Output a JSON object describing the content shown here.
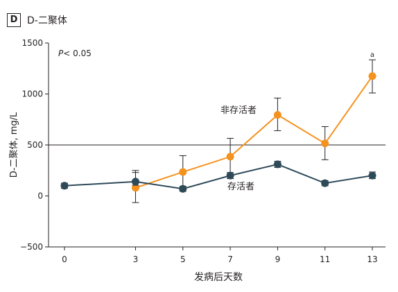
{
  "panel": {
    "letter": "D",
    "title": "D-二聚体"
  },
  "chart_data": {
    "type": "line",
    "ylabel": "D-二聚体, mg/L",
    "xlabel": "发病后天数",
    "ylim": [
      -500,
      1500
    ],
    "yticks": [
      -500,
      0,
      500,
      1000,
      1500
    ],
    "ytick_labels": [
      "−500",
      "0",
      "500",
      "1000",
      "1500"
    ],
    "x": [
      0,
      3,
      5,
      7,
      9,
      11,
      13
    ],
    "xlim": [
      0,
      13
    ],
    "reference_line": 500,
    "pvalue_label": "P< 0.05",
    "grid": false,
    "series": [
      {
        "name": "非存活者",
        "color": "#f5921e",
        "x": [
          3,
          5,
          7,
          9,
          11,
          13
        ],
        "values": [
          80,
          235,
          385,
          795,
          515,
          1175
        ],
        "err_low": [
          -65,
          80,
          215,
          640,
          355,
          1010
        ],
        "err_high": [
          230,
          395,
          565,
          960,
          680,
          1335
        ]
      },
      {
        "name": "存活者",
        "color": "#2e4a59",
        "x": [
          0,
          3,
          5,
          7,
          9,
          11,
          13
        ],
        "values": [
          100,
          140,
          70,
          200,
          310,
          125,
          200
        ],
        "err_low": [
          75,
          105,
          45,
          170,
          280,
          100,
          170
        ],
        "err_high": [
          125,
          250,
          95,
          230,
          340,
          150,
          235
        ]
      }
    ],
    "annotations": [
      {
        "text": "a",
        "x": 13,
        "y": 1390
      }
    ]
  }
}
